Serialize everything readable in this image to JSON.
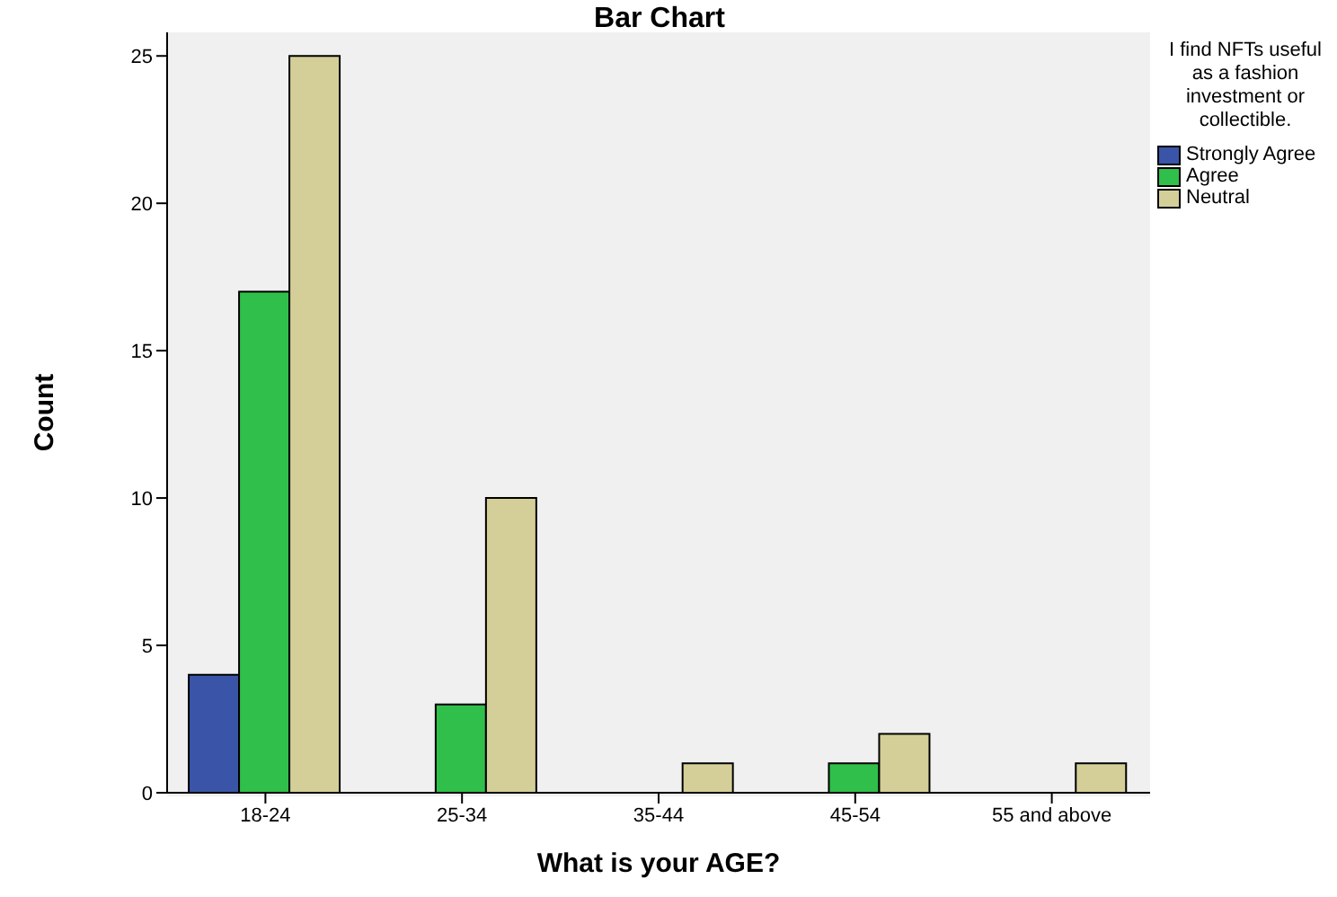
{
  "chart_data": {
    "type": "bar",
    "title": "Bar Chart",
    "xlabel": "What is your AGE?",
    "ylabel": "Count",
    "legend_title": "I find NFTs useful as a fashion investment or collectible.",
    "categories": [
      "18-24",
      "25-34",
      "35-44",
      "45-54",
      "55 and above"
    ],
    "series": [
      {
        "name": "Strongly Agree",
        "color": "#3a55a8",
        "values": [
          4,
          null,
          null,
          null,
          null
        ]
      },
      {
        "name": "Agree",
        "color": "#2fbf4a",
        "values": [
          17,
          3,
          null,
          1,
          null
        ]
      },
      {
        "name": "Neutral",
        "color": "#d4cf98",
        "values": [
          25,
          10,
          1,
          2,
          1
        ]
      }
    ],
    "ylim": [
      0,
      25.8
    ],
    "yticks": [
      0,
      5,
      10,
      15,
      20,
      25
    ],
    "legend": "right"
  }
}
